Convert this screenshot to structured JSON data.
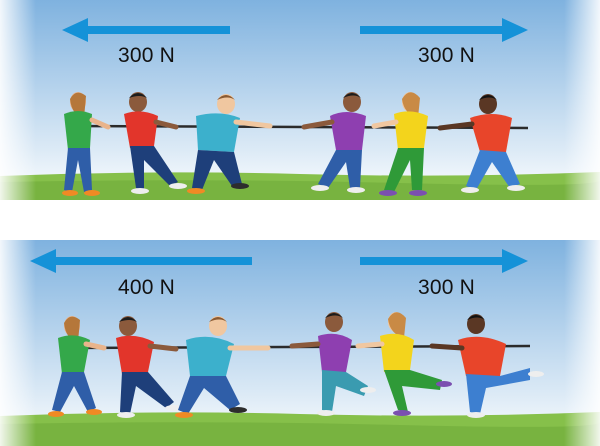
{
  "colors": {
    "sky_top": "#7fb2df",
    "sky_bottom": "#ffffff",
    "ground": "#86c04a",
    "arrow": "#1592d8",
    "rope": "#2b2b2b"
  },
  "panels": [
    {
      "left_force": {
        "label": "300 N",
        "magnitude_N": 300,
        "direction": "left"
      },
      "right_force": {
        "label": "300 N",
        "magnitude_N": 300,
        "direction": "right"
      }
    },
    {
      "left_force": {
        "label": "400 N",
        "magnitude_N": 400,
        "direction": "left"
      },
      "right_force": {
        "label": "300 N",
        "magnitude_N": 300,
        "direction": "right"
      }
    }
  ]
}
